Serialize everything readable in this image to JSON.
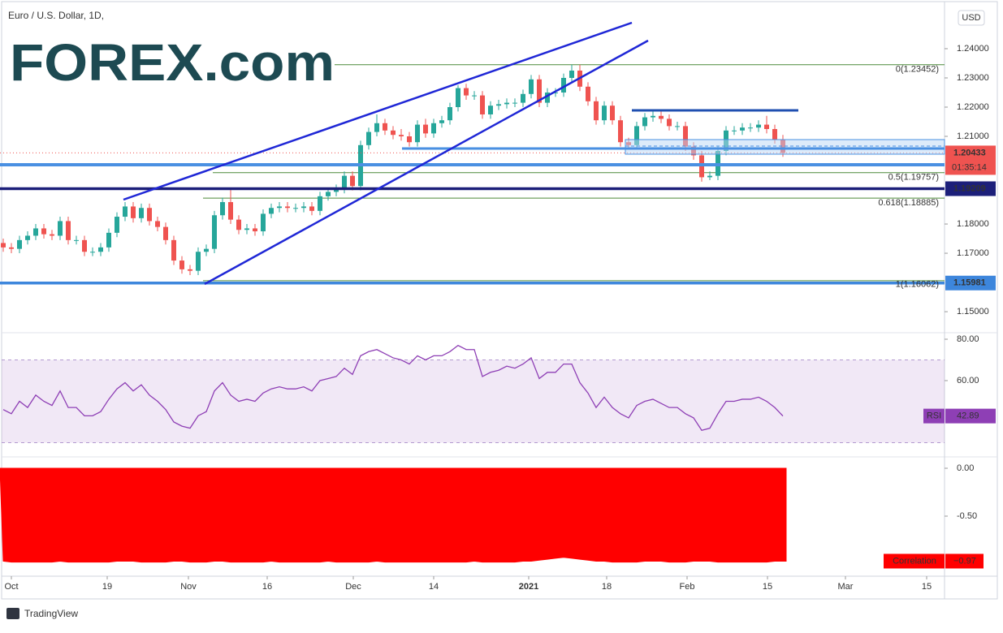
{
  "header": {
    "title": "Euro / U.S. Dollar, 1D,",
    "currency": "USD",
    "logo": "FOREX.com"
  },
  "chart_data": [
    {
      "type": "candlestick",
      "up_color": "#26a69a",
      "down_color": "#ef5350",
      "x": [
        0,
        1,
        2,
        3,
        4,
        5,
        6,
        7,
        8,
        9,
        10,
        11,
        12,
        13,
        14,
        15,
        16,
        17,
        18,
        19,
        20,
        21,
        22,
        23,
        24,
        25,
        26,
        27,
        28,
        29,
        30,
        31,
        32,
        33,
        34,
        35,
        36,
        37,
        38,
        39,
        40,
        41,
        42,
        43,
        44,
        45,
        46,
        47,
        48,
        49,
        50,
        51,
        52,
        53,
        54,
        55,
        56,
        57,
        58,
        59,
        60,
        61,
        62,
        63,
        64,
        65,
        66,
        67,
        68,
        69,
        70,
        71,
        72,
        73,
        74,
        75,
        76,
        77,
        78,
        79,
        80,
        81,
        82,
        83,
        84,
        85,
        86,
        87,
        88,
        89,
        90,
        91,
        92,
        93,
        94,
        95,
        96
      ],
      "open": [
        1.1735,
        1.172,
        1.1715,
        1.1745,
        1.176,
        1.1785,
        1.1765,
        1.176,
        1.181,
        1.1745,
        1.1745,
        1.1705,
        1.1705,
        1.172,
        1.177,
        1.1825,
        1.186,
        1.182,
        1.1855,
        1.181,
        1.179,
        1.1745,
        1.1675,
        1.1645,
        1.164,
        1.1705,
        1.1715,
        1.183,
        1.1875,
        1.1815,
        1.178,
        1.1785,
        1.1775,
        1.1835,
        1.1855,
        1.186,
        1.1855,
        1.1855,
        1.186,
        1.1845,
        1.1895,
        1.191,
        1.192,
        1.1965,
        1.193,
        1.207,
        1.2115,
        1.2145,
        1.212,
        1.2105,
        1.21,
        1.208,
        1.214,
        1.211,
        1.2145,
        1.2155,
        1.22,
        1.2265,
        1.224,
        1.224,
        1.2175,
        1.2205,
        1.221,
        1.2215,
        1.2215,
        1.2245,
        1.2295,
        1.2215,
        1.225,
        1.225,
        1.23,
        1.2325,
        1.227,
        1.222,
        1.2155,
        1.2205,
        1.2155,
        1.208,
        1.207,
        1.2135,
        1.2165,
        1.217,
        1.216,
        1.2135,
        1.2135,
        1.2065,
        1.2035,
        1.196,
        1.1965,
        1.205,
        1.212,
        1.212,
        1.213,
        1.213,
        1.214,
        1.2125,
        1.209
      ],
      "high": [
        1.175,
        1.1735,
        1.176,
        1.1775,
        1.18,
        1.18,
        1.178,
        1.1825,
        1.1825,
        1.176,
        1.176,
        1.172,
        1.1735,
        1.1785,
        1.184,
        1.1875,
        1.1875,
        1.187,
        1.187,
        1.1825,
        1.1805,
        1.176,
        1.169,
        1.166,
        1.172,
        1.173,
        1.1845,
        1.189,
        1.192,
        1.183,
        1.18,
        1.18,
        1.185,
        1.187,
        1.1875,
        1.1875,
        1.187,
        1.1875,
        1.1875,
        1.191,
        1.1925,
        1.1935,
        1.198,
        1.198,
        1.2085,
        1.213,
        1.2175,
        1.216,
        1.2135,
        1.2125,
        1.2115,
        1.2155,
        1.216,
        1.216,
        1.217,
        1.2215,
        1.2275,
        1.228,
        1.2255,
        1.2255,
        1.222,
        1.2225,
        1.223,
        1.223,
        1.226,
        1.231,
        1.231,
        1.2265,
        1.2265,
        1.2315,
        1.2345,
        1.2345,
        1.2285,
        1.2235,
        1.222,
        1.222,
        1.217,
        1.2095,
        1.215,
        1.218,
        1.2185,
        1.2185,
        1.2175,
        1.215,
        1.215,
        1.208,
        1.205,
        1.198,
        1.2065,
        1.2135,
        1.2135,
        1.2145,
        1.2145,
        1.2155,
        1.217,
        1.214,
        1.2105
      ],
      "low": [
        1.1705,
        1.17,
        1.17,
        1.173,
        1.1745,
        1.175,
        1.1745,
        1.1745,
        1.173,
        1.173,
        1.169,
        1.169,
        1.169,
        1.1705,
        1.1755,
        1.181,
        1.1805,
        1.1805,
        1.1795,
        1.1775,
        1.173,
        1.166,
        1.163,
        1.1625,
        1.1625,
        1.169,
        1.17,
        1.1815,
        1.18,
        1.1765,
        1.1765,
        1.176,
        1.176,
        1.182,
        1.184,
        1.184,
        1.184,
        1.184,
        1.183,
        1.183,
        1.188,
        1.1895,
        1.1905,
        1.1915,
        1.1915,
        1.2055,
        1.21,
        1.2105,
        1.209,
        1.2085,
        1.2065,
        1.2065,
        1.2095,
        1.2095,
        1.213,
        1.214,
        1.2185,
        1.2225,
        1.2225,
        1.216,
        1.216,
        1.219,
        1.2195,
        1.22,
        1.22,
        1.223,
        1.22,
        1.22,
        1.2235,
        1.2235,
        1.2285,
        1.2255,
        1.2205,
        1.214,
        1.214,
        1.214,
        1.2065,
        1.2055,
        1.2055,
        1.212,
        1.215,
        1.2145,
        1.212,
        1.212,
        1.205,
        1.202,
        1.1945,
        1.195,
        1.195,
        1.2035,
        1.2105,
        1.2105,
        1.2115,
        1.2115,
        1.211,
        1.2075,
        1.203
      ],
      "close": [
        1.172,
        1.1715,
        1.1745,
        1.176,
        1.1785,
        1.1765,
        1.176,
        1.181,
        1.1745,
        1.1745,
        1.1705,
        1.1705,
        1.172,
        1.177,
        1.1825,
        1.186,
        1.182,
        1.1855,
        1.181,
        1.179,
        1.1745,
        1.1675,
        1.1645,
        1.164,
        1.1705,
        1.1715,
        1.183,
        1.1875,
        1.1815,
        1.178,
        1.1785,
        1.1775,
        1.1835,
        1.1855,
        1.186,
        1.1855,
        1.1855,
        1.186,
        1.1845,
        1.1895,
        1.191,
        1.192,
        1.1965,
        1.193,
        1.207,
        1.2115,
        1.2145,
        1.212,
        1.2105,
        1.21,
        1.208,
        1.214,
        1.211,
        1.2145,
        1.2155,
        1.22,
        1.2265,
        1.224,
        1.224,
        1.2175,
        1.2205,
        1.221,
        1.2215,
        1.2215,
        1.2245,
        1.2295,
        1.2215,
        1.225,
        1.225,
        1.23,
        1.2325,
        1.227,
        1.222,
        1.2155,
        1.2205,
        1.2155,
        1.208,
        1.207,
        1.2135,
        1.2165,
        1.217,
        1.216,
        1.2135,
        1.2135,
        1.2065,
        1.2035,
        1.196,
        1.1965,
        1.205,
        1.212,
        1.212,
        1.213,
        1.213,
        1.214,
        1.2125,
        1.209,
        1.2043
      ],
      "xlim": [
        -0.2,
        115.9
      ],
      "xticks": [
        {
          "value": 1.0,
          "label": "Oct"
        },
        {
          "value": 12.8,
          "label": "19"
        },
        {
          "value": 22.8,
          "label": "Nov"
        },
        {
          "value": 32.5,
          "label": "16"
        },
        {
          "value": 43.1,
          "label": "Dec"
        },
        {
          "value": 53,
          "label": "14"
        },
        {
          "value": 64.7,
          "label": "2021"
        },
        {
          "value": 74.3,
          "label": "18"
        },
        {
          "value": 84.2,
          "label": "Feb"
        },
        {
          "value": 94.1,
          "label": "15"
        },
        {
          "value": 103.7,
          "label": "Mar"
        },
        {
          "value": 113.7,
          "label": "15"
        }
      ],
      "ylim": [
        1.1428,
        1.2561
      ],
      "yticks": [
        {
          "value": 1.24,
          "label": "1.24000"
        },
        {
          "value": 1.23,
          "label": "1.23000"
        },
        {
          "value": 1.22,
          "label": "1.22000"
        },
        {
          "value": 1.21,
          "label": "1.21000"
        },
        {
          "value": 1.18,
          "label": "1.18000"
        },
        {
          "value": 1.17,
          "label": "1.17000"
        },
        {
          "value": 1.15,
          "label": "1.15000"
        }
      ],
      "fib_levels": [
        {
          "value": 1.23452,
          "label": "0(1.23452)"
        },
        {
          "value": 1.19757,
          "label": "0.5(1.19757)"
        },
        {
          "value": 1.18885,
          "label": "0.618(1.18885)"
        },
        {
          "value": 1.16062,
          "label": "1(1.16062)"
        }
      ],
      "fib_color": "#4d8a3a",
      "price_lines": [
        {
          "value": 1.19209,
          "color": "#1c1f7a"
        },
        {
          "value": 1.15981,
          "color": "#3d86dc"
        }
      ],
      "last_price": 1.20433,
      "countdown": "01:35:14",
      "last_color": "#ef5350"
    },
    {
      "type": "line",
      "name": "RSI",
      "color": "#8e3fb5",
      "band": [
        30,
        70
      ],
      "values": [
        46,
        44,
        50,
        47,
        53,
        50,
        48,
        55,
        47,
        47,
        43,
        43,
        45,
        51,
        56,
        59,
        55,
        58,
        53,
        50,
        46,
        40,
        38,
        37,
        43,
        45,
        55,
        59,
        53,
        50,
        51,
        50,
        54,
        56,
        57,
        56,
        56,
        57,
        55,
        60,
        61,
        62,
        66,
        63,
        72,
        74,
        75,
        73,
        71,
        70,
        68,
        72,
        70,
        72,
        72,
        74,
        77,
        75,
        75,
        62,
        64,
        65,
        67,
        66,
        68,
        71,
        61,
        64,
        64,
        68,
        68,
        59,
        54,
        47,
        52,
        47,
        44,
        42,
        48,
        50,
        51,
        49,
        47,
        47,
        44,
        42,
        36,
        37,
        44,
        50,
        50,
        51,
        51,
        52,
        50,
        47,
        42.89
      ],
      "ylim": [
        23.14,
        82.35
      ],
      "yticks": [
        {
          "value": 80,
          "label": "80.00"
        },
        {
          "value": 60,
          "label": "60.00"
        }
      ]
    },
    {
      "type": "area",
      "name": "Correlation",
      "color": "#ff0000",
      "values": [
        -0.97,
        -0.98,
        -0.98,
        -0.98,
        -0.98,
        -0.98,
        -0.98,
        -0.97,
        -0.98,
        -0.98,
        -0.98,
        -0.98,
        -0.98,
        -0.98,
        -0.97,
        -0.97,
        -0.97,
        -0.98,
        -0.98,
        -0.98,
        -0.98,
        -0.97,
        -0.97,
        -0.98,
        -0.98,
        -0.98,
        -0.97,
        -0.97,
        -0.98,
        -0.98,
        -0.98,
        -0.98,
        -0.98,
        -0.97,
        -0.98,
        -0.98,
        -0.98,
        -0.98,
        -0.98,
        -0.98,
        -0.97,
        -0.98,
        -0.98,
        -0.98,
        -0.98,
        -0.98,
        -0.97,
        -0.98,
        -0.98,
        -0.98,
        -0.98,
        -0.98,
        -0.98,
        -0.98,
        -0.98,
        -0.98,
        -0.98,
        -0.98,
        -0.97,
        -0.98,
        -0.98,
        -0.98,
        -0.98,
        -0.98,
        -0.97,
        -0.97,
        -0.96,
        -0.95,
        -0.94,
        -0.93,
        -0.94,
        -0.95,
        -0.96,
        -0.97,
        -0.97,
        -0.98,
        -0.98,
        -0.98,
        -0.98,
        -0.97,
        -0.97,
        -0.97,
        -0.98,
        -0.98,
        -0.98,
        -0.97,
        -0.97,
        -0.97,
        -0.98,
        -0.98,
        -0.98,
        -0.98,
        -0.98,
        -0.98,
        -0.98,
        -0.97,
        -0.97
      ],
      "value_labels": [
        null,
        null,
        null,
        null,
        null,
        null,
        null,
        null,
        null,
        null,
        null,
        null,
        null,
        null,
        null,
        null,
        null,
        null,
        null,
        null,
        null,
        null,
        null,
        null,
        null,
        null,
        null,
        null,
        null,
        null,
        null,
        null,
        null,
        null,
        null,
        null,
        null,
        null,
        null,
        null,
        null,
        null,
        null,
        null,
        null,
        null,
        null,
        null,
        null,
        null,
        null,
        null,
        null,
        null,
        null,
        null,
        null,
        null,
        null,
        null,
        null,
        null,
        null,
        null,
        null,
        null,
        null,
        null,
        null,
        null,
        null,
        null,
        null,
        null,
        null,
        null,
        null,
        null,
        null,
        null,
        null,
        null,
        null,
        null,
        null,
        null,
        null,
        null,
        null,
        null,
        null,
        null,
        null,
        null,
        null,
        null,
        "−0.97"
      ],
      "ylim": [
        -1.127,
        0.1017
      ],
      "yticks": [
        {
          "value": 0,
          "label": "0.00"
        },
        {
          "value": -0.5,
          "label": "-0.50"
        }
      ]
    }
  ],
  "footer": {
    "brand": "TradingView"
  }
}
